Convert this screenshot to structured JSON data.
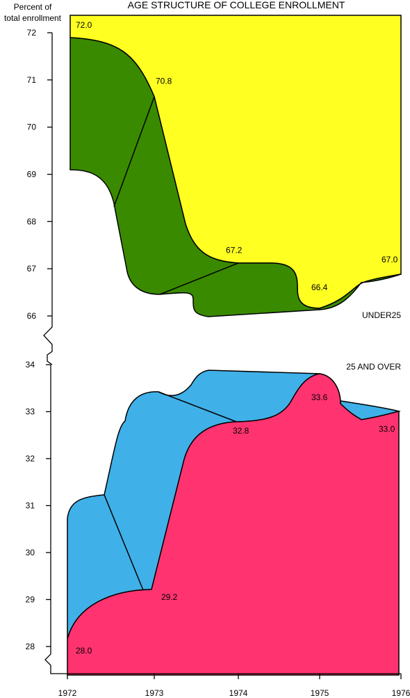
{
  "chart_data": {
    "type": "area",
    "title": "AGE STRUCTURE OF COLLEGE ENROLLMENT",
    "ylabel_line1": "Percent of",
    "ylabel_line2": "total enrollment",
    "x_ticks": [
      "1972",
      "1973",
      "1974",
      "1975",
      "1976"
    ],
    "colors": {
      "under25_band": "#ffff22",
      "under25_ribbon": "#3a8a00",
      "over25_band": "#ff3370",
      "over25_ribbon": "#40b0e8",
      "outline": "#000000"
    },
    "panels": [
      {
        "name": "UNDER25",
        "ylim": [
          66,
          72
        ],
        "y_ticks": [
          "66",
          "67",
          "68",
          "69",
          "70",
          "71",
          "72"
        ],
        "series": [
          {
            "name": "UNDER25",
            "x": [
              1972,
              1973,
              1974,
              1975,
              1976
            ],
            "values": [
              72.0,
              70.8,
              67.2,
              66.4,
              67.0
            ],
            "labels": [
              "72.0",
              "70.8",
              "67.2",
              "66.4",
              "67.0"
            ]
          }
        ]
      },
      {
        "name": "25 AND OVER",
        "ylim": [
          28,
          34
        ],
        "y_ticks": [
          "28",
          "29",
          "30",
          "31",
          "32",
          "33",
          "34"
        ],
        "series": [
          {
            "name": "25 AND OVER",
            "x": [
              1972,
              1973,
              1974,
              1975,
              1976
            ],
            "values": [
              28.0,
              29.2,
              32.8,
              33.6,
              33.0
            ],
            "labels": [
              "28.0",
              "29.2",
              "32.8",
              "33.6",
              "33.0"
            ]
          }
        ]
      }
    ]
  }
}
